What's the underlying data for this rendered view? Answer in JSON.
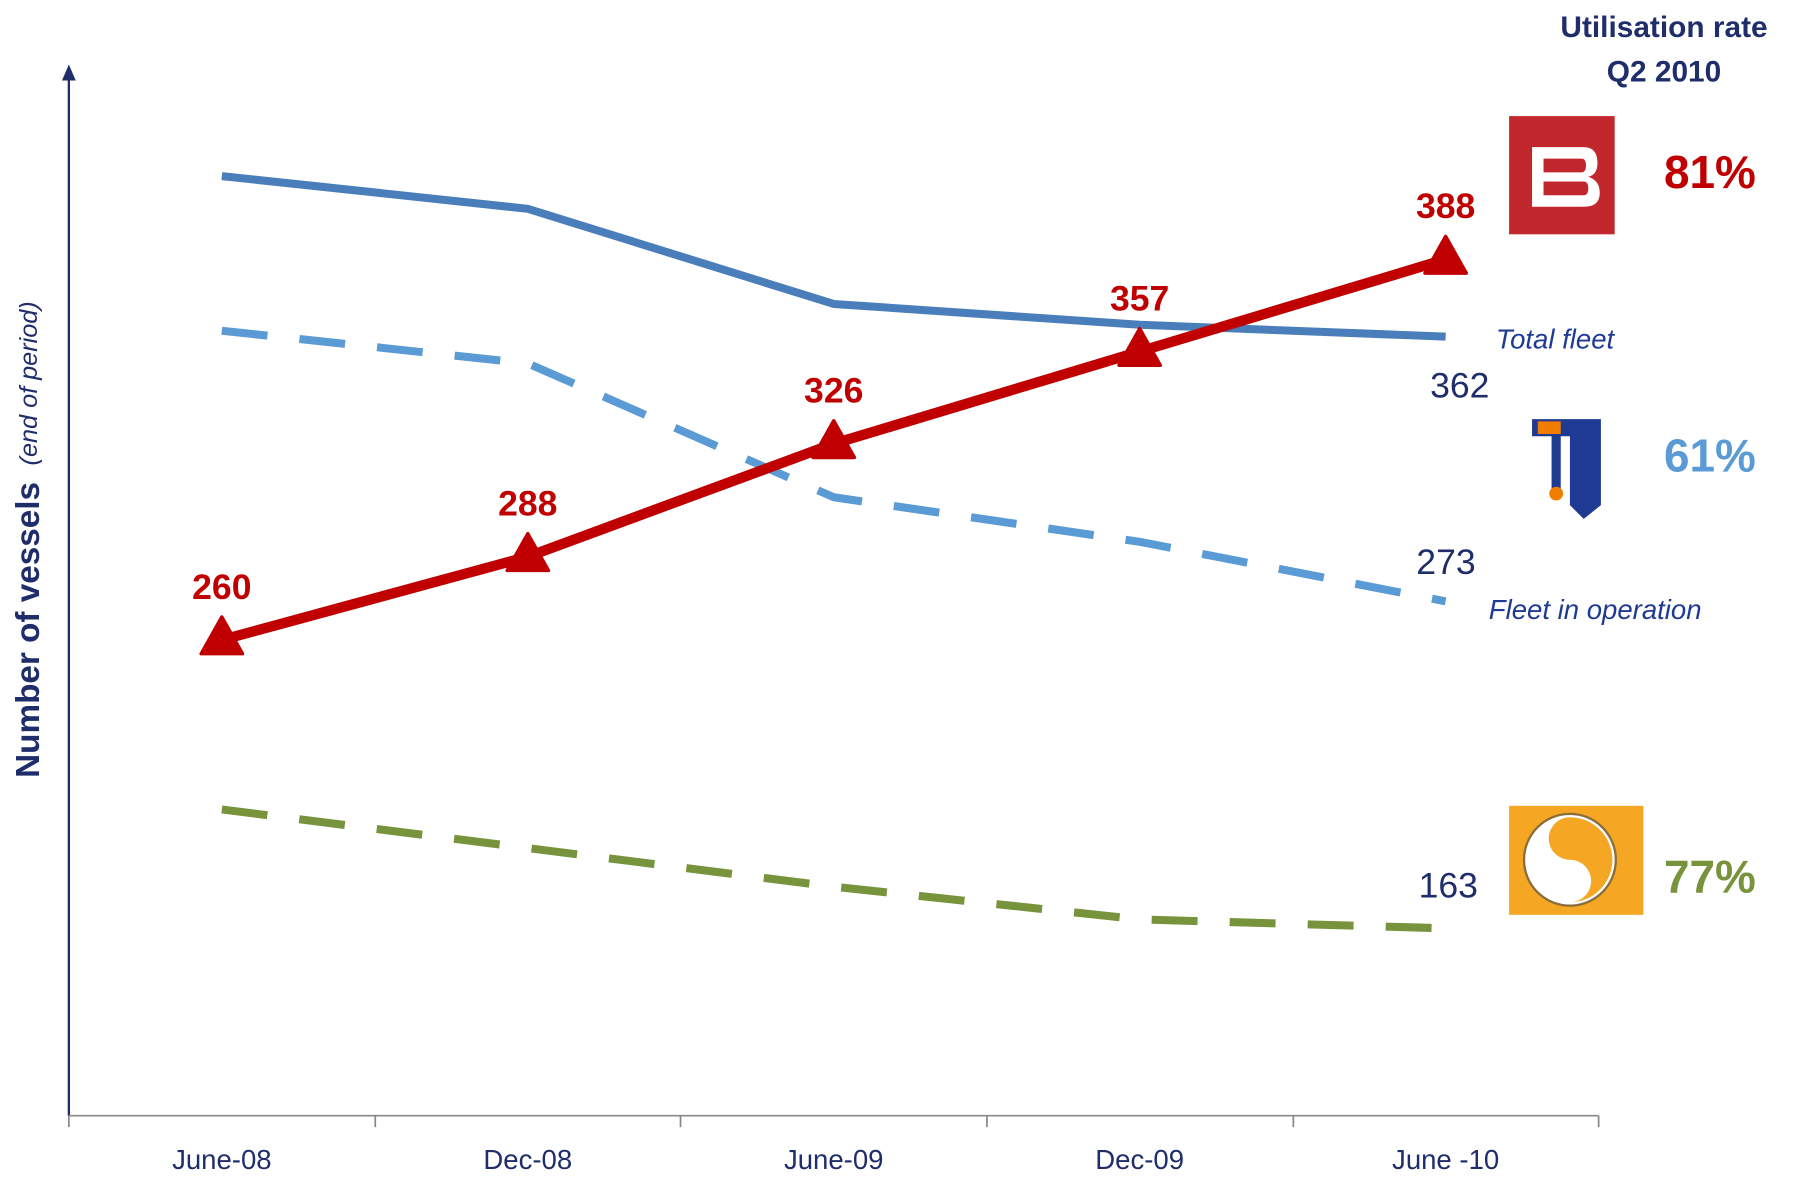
{
  "chart_data": {
    "type": "line",
    "ylabel": "Number of vessels",
    "ylabel_note": "(end of period)",
    "categories": [
      "June-08",
      "Dec-08",
      "June-09",
      "Dec-09",
      "June -10"
    ],
    "ylim": [
      100,
      452
    ],
    "series": [
      {
        "name": "Total fleet",
        "color": "#4a7ebb",
        "dash": false,
        "values": [
          416,
          405,
          373,
          366,
          362
        ]
      },
      {
        "name": "Fleet in operation",
        "color": "#5b9bd5",
        "dash": true,
        "values": [
          364,
          353,
          308,
          293,
          273
        ]
      },
      {
        "color": "#c00000",
        "dash": false,
        "markers": true,
        "values": [
          260,
          288,
          326,
          357,
          388
        ]
      },
      {
        "color": "#77933c",
        "dash": true,
        "values": [
          203,
          190,
          177,
          166,
          163
        ]
      }
    ],
    "utilisation": {
      "title": [
        "Utilisation rate",
        "Q2 2010"
      ],
      "values": [
        81,
        61,
        77
      ],
      "value_labels": [
        "81%",
        "61%",
        "77%"
      ],
      "colors": [
        "#c00000",
        "#5b9bd5",
        "#77933c"
      ]
    }
  }
}
